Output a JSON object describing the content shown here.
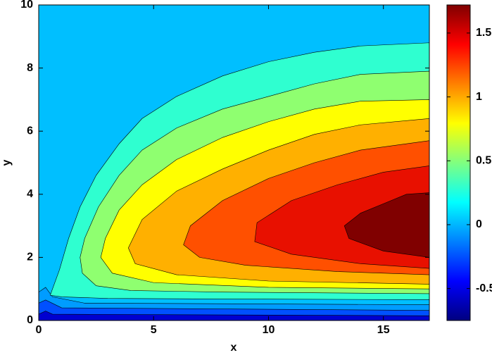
{
  "chart_data": {
    "type": "contour",
    "xlabel": "x",
    "ylabel": "y",
    "xlim": [
      0,
      17
    ],
    "ylim": [
      0,
      10
    ],
    "xticks": [
      0,
      5,
      10,
      15
    ],
    "yticks": [
      0,
      2,
      4,
      6,
      8,
      10
    ],
    "background_color": "#00bfff",
    "colormap": "jet",
    "clim": [
      -0.75,
      1.72
    ],
    "cticks": [
      -0.5,
      0,
      0.5,
      1,
      1.5
    ],
    "regions": [
      {
        "color": "#009cff",
        "x": [
          0,
          0,
          0.3,
          0.6,
          2,
          17,
          17
        ],
        "y": [
          0,
          0.9,
          1.05,
          0.75,
          0.55,
          0.5,
          0
        ]
      },
      {
        "color": "#0050ff",
        "x": [
          0,
          0,
          0.3,
          1,
          17,
          17
        ],
        "y": [
          0,
          0.55,
          0.65,
          0.4,
          0.32,
          0
        ]
      },
      {
        "color": "#0000d0",
        "x": [
          0,
          0,
          0.3,
          0.6,
          17,
          17
        ],
        "y": [
          0,
          0.2,
          0.3,
          0.2,
          0.15,
          0
        ]
      },
      {
        "color": "#2fffd0",
        "x": [
          17,
          14,
          12,
          10,
          8,
          6,
          4.5,
          3.5,
          2.5,
          1.8,
          1.3,
          0.9,
          0.6,
          0.5,
          1,
          3,
          8,
          17
        ],
        "y": [
          8.8,
          8.7,
          8.5,
          8.2,
          7.75,
          7.1,
          6.4,
          5.6,
          4.6,
          3.6,
          2.6,
          1.6,
          1.0,
          0.8,
          0.75,
          0.7,
          0.68,
          0.66
        ]
      },
      {
        "color": "#8fff70",
        "x": [
          17,
          14,
          12,
          10,
          8,
          6,
          4.5,
          3.5,
          2.6,
          2.0,
          1.8,
          1.9,
          2.5,
          4,
          8,
          17
        ],
        "y": [
          7.9,
          7.8,
          7.5,
          7.1,
          6.7,
          6.1,
          5.4,
          4.6,
          3.6,
          2.6,
          2.0,
          1.5,
          1.1,
          0.95,
          0.9,
          0.85
        ]
      },
      {
        "color": "#ffff00",
        "x": [
          17,
          14,
          12,
          10,
          8,
          6,
          4.5,
          3.5,
          2.9,
          2.7,
          3.2,
          5,
          10,
          17
        ],
        "y": [
          7.0,
          6.95,
          6.7,
          6.3,
          5.8,
          5.1,
          4.3,
          3.5,
          2.6,
          2.0,
          1.5,
          1.2,
          1.05,
          1.0
        ]
      },
      {
        "color": "#ffb000",
        "x": [
          17,
          14,
          12,
          10,
          8,
          6,
          4.5,
          3.9,
          4.2,
          6,
          10,
          17
        ],
        "y": [
          6.4,
          6.2,
          5.9,
          5.4,
          4.8,
          4.1,
          3.2,
          2.3,
          1.8,
          1.45,
          1.25,
          1.15
        ]
      },
      {
        "color": "#ff5000",
        "x": [
          17,
          14,
          12,
          10,
          8,
          6.6,
          6.3,
          7,
          9,
          13,
          17
        ],
        "y": [
          5.7,
          5.4,
          5.0,
          4.5,
          3.8,
          3.0,
          2.4,
          2.0,
          1.75,
          1.55,
          1.45
        ]
      },
      {
        "color": "#e81000",
        "x": [
          17,
          15,
          13,
          11,
          9.5,
          9.4,
          11,
          14,
          17
        ],
        "y": [
          4.9,
          4.7,
          4.3,
          3.8,
          3.1,
          2.5,
          2.1,
          1.8,
          1.65
        ]
      },
      {
        "color": "#800000",
        "x": [
          17,
          16,
          15,
          14,
          13.3,
          13.5,
          15,
          17
        ],
        "y": [
          4.05,
          4.0,
          3.7,
          3.4,
          3.0,
          2.6,
          2.2,
          2.0
        ]
      }
    ]
  }
}
